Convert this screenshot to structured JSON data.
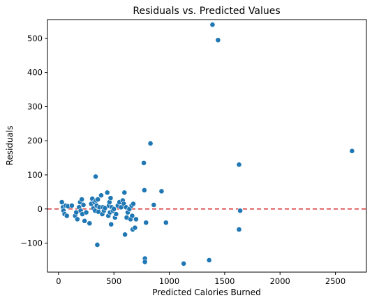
{
  "chart_data": {
    "type": "scatter",
    "title": "Residuals vs. Predicted Values",
    "xlabel": "Predicted Calories Burned",
    "ylabel": "Residuals",
    "xlim": [
      -100,
      2780
    ],
    "ylim": [
      -185,
      555
    ],
    "xticks": [
      0,
      500,
      1000,
      1500,
      2000,
      2500
    ],
    "yticks": [
      -100,
      0,
      100,
      200,
      300,
      400,
      500
    ],
    "grid": false,
    "point_color": "#1f77b4",
    "reference_line": {
      "y": 0,
      "color": "#d62728",
      "style": "dashed"
    },
    "points": [
      {
        "x": 30,
        "y": 20
      },
      {
        "x": 40,
        "y": 5
      },
      {
        "x": 45,
        "y": -5
      },
      {
        "x": 55,
        "y": -15
      },
      {
        "x": 65,
        "y": 10
      },
      {
        "x": 75,
        "y": -20
      },
      {
        "x": 85,
        "y": 8
      },
      {
        "x": 120,
        "y": 10
      },
      {
        "x": 150,
        "y": -20
      },
      {
        "x": 160,
        "y": -10
      },
      {
        "x": 170,
        "y": -30
      },
      {
        "x": 185,
        "y": 5
      },
      {
        "x": 195,
        "y": 20
      },
      {
        "x": 200,
        "y": -5
      },
      {
        "x": 210,
        "y": 28
      },
      {
        "x": 215,
        "y": -15
      },
      {
        "x": 225,
        "y": 12
      },
      {
        "x": 235,
        "y": -35
      },
      {
        "x": 250,
        "y": -10
      },
      {
        "x": 280,
        "y": -42
      },
      {
        "x": 295,
        "y": 15
      },
      {
        "x": 305,
        "y": 30
      },
      {
        "x": 315,
        "y": 2
      },
      {
        "x": 325,
        "y": 20
      },
      {
        "x": 330,
        "y": -5
      },
      {
        "x": 335,
        "y": 95
      },
      {
        "x": 340,
        "y": 25
      },
      {
        "x": 345,
        "y": 10
      },
      {
        "x": 350,
        "y": -105
      },
      {
        "x": 355,
        "y": 28
      },
      {
        "x": 360,
        "y": -8
      },
      {
        "x": 370,
        "y": 5
      },
      {
        "x": 385,
        "y": 40
      },
      {
        "x": 395,
        "y": -15
      },
      {
        "x": 400,
        "y": 5
      },
      {
        "x": 410,
        "y": -5
      },
      {
        "x": 420,
        "y": 3
      },
      {
        "x": 440,
        "y": 48
      },
      {
        "x": 450,
        "y": -20
      },
      {
        "x": 455,
        "y": 10
      },
      {
        "x": 460,
        "y": 20
      },
      {
        "x": 465,
        "y": -10
      },
      {
        "x": 470,
        "y": 32
      },
      {
        "x": 475,
        "y": -45
      },
      {
        "x": 480,
        "y": 5
      },
      {
        "x": 490,
        "y": -5
      },
      {
        "x": 500,
        "y": 0
      },
      {
        "x": 510,
        "y": -25
      },
      {
        "x": 520,
        "y": -15
      },
      {
        "x": 535,
        "y": 10
      },
      {
        "x": 550,
        "y": 20
      },
      {
        "x": 565,
        "y": 5
      },
      {
        "x": 580,
        "y": 25
      },
      {
        "x": 590,
        "y": 15
      },
      {
        "x": 595,
        "y": 48
      },
      {
        "x": 600,
        "y": -75
      },
      {
        "x": 610,
        "y": 5
      },
      {
        "x": 615,
        "y": -25
      },
      {
        "x": 625,
        "y": -10
      },
      {
        "x": 640,
        "y": 0
      },
      {
        "x": 650,
        "y": -30
      },
      {
        "x": 660,
        "y": 10
      },
      {
        "x": 665,
        "y": -20
      },
      {
        "x": 670,
        "y": -60
      },
      {
        "x": 675,
        "y": 15
      },
      {
        "x": 690,
        "y": -55
      },
      {
        "x": 700,
        "y": -30
      },
      {
        "x": 770,
        "y": 135
      },
      {
        "x": 775,
        "y": 55
      },
      {
        "x": 780,
        "y": -145
      },
      {
        "x": 780,
        "y": -155
      },
      {
        "x": 790,
        "y": -40
      },
      {
        "x": 830,
        "y": 192
      },
      {
        "x": 860,
        "y": 12
      },
      {
        "x": 930,
        "y": 52
      },
      {
        "x": 970,
        "y": -40
      },
      {
        "x": 1130,
        "y": -160
      },
      {
        "x": 1360,
        "y": -150
      },
      {
        "x": 1390,
        "y": 540
      },
      {
        "x": 1440,
        "y": 495
      },
      {
        "x": 1630,
        "y": 130
      },
      {
        "x": 1630,
        "y": -60
      },
      {
        "x": 1640,
        "y": -5
      },
      {
        "x": 2650,
        "y": 170
      }
    ]
  }
}
